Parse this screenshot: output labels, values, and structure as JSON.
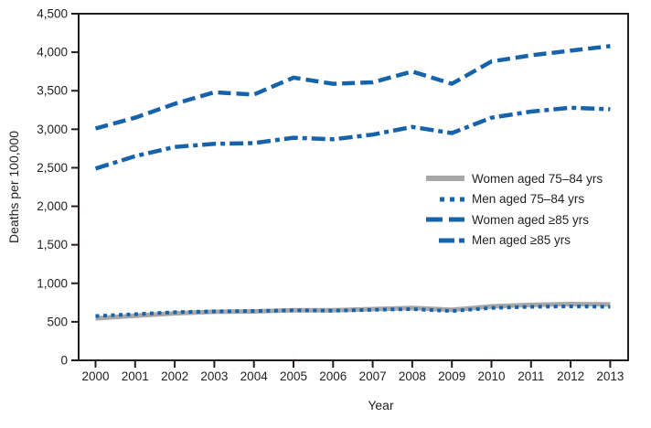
{
  "figure": {
    "title": "",
    "xlabel": "Year",
    "ylabel": "Deaths per 100,000"
  },
  "colors": {
    "line_blue": "#1663ac",
    "line_gray": "#a7a7a7",
    "axis": "#231f20",
    "text": "#231f20",
    "background": "#ffffff"
  },
  "chart_data": {
    "type": "line",
    "title": "",
    "xlabel": "Year",
    "ylabel": "Deaths per 100,000",
    "x": [
      2000,
      2001,
      2002,
      2003,
      2004,
      2005,
      2006,
      2007,
      2008,
      2009,
      2010,
      2011,
      2012,
      2013
    ],
    "ylim": [
      0,
      4500
    ],
    "ytick_step": 500,
    "grid": false,
    "legend_position": "inside-right",
    "series": [
      {
        "name": "Women aged 75–84 yrs",
        "values": [
          545,
          580,
          610,
          630,
          635,
          650,
          650,
          665,
          680,
          655,
          700,
          720,
          730,
          725
        ],
        "color": "#a7a7a7",
        "style": "solid"
      },
      {
        "name": "Men aged 75–84 yrs",
        "values": [
          575,
          600,
          625,
          635,
          640,
          650,
          645,
          655,
          665,
          640,
          680,
          695,
          700,
          695
        ],
        "color": "#1663ac",
        "style": "dotted"
      },
      {
        "name": "Women aged ≥85 yrs",
        "values": [
          3010,
          3150,
          3330,
          3480,
          3450,
          3670,
          3590,
          3610,
          3750,
          3590,
          3880,
          3960,
          4020,
          4080
        ],
        "color": "#1663ac",
        "style": "dashed"
      },
      {
        "name": "Men aged ≥85 yrs",
        "values": [
          2490,
          2650,
          2770,
          2810,
          2820,
          2890,
          2870,
          2930,
          3030,
          2950,
          3150,
          3230,
          3280,
          3260
        ],
        "color": "#1663ac",
        "style": "dashdot"
      }
    ]
  }
}
